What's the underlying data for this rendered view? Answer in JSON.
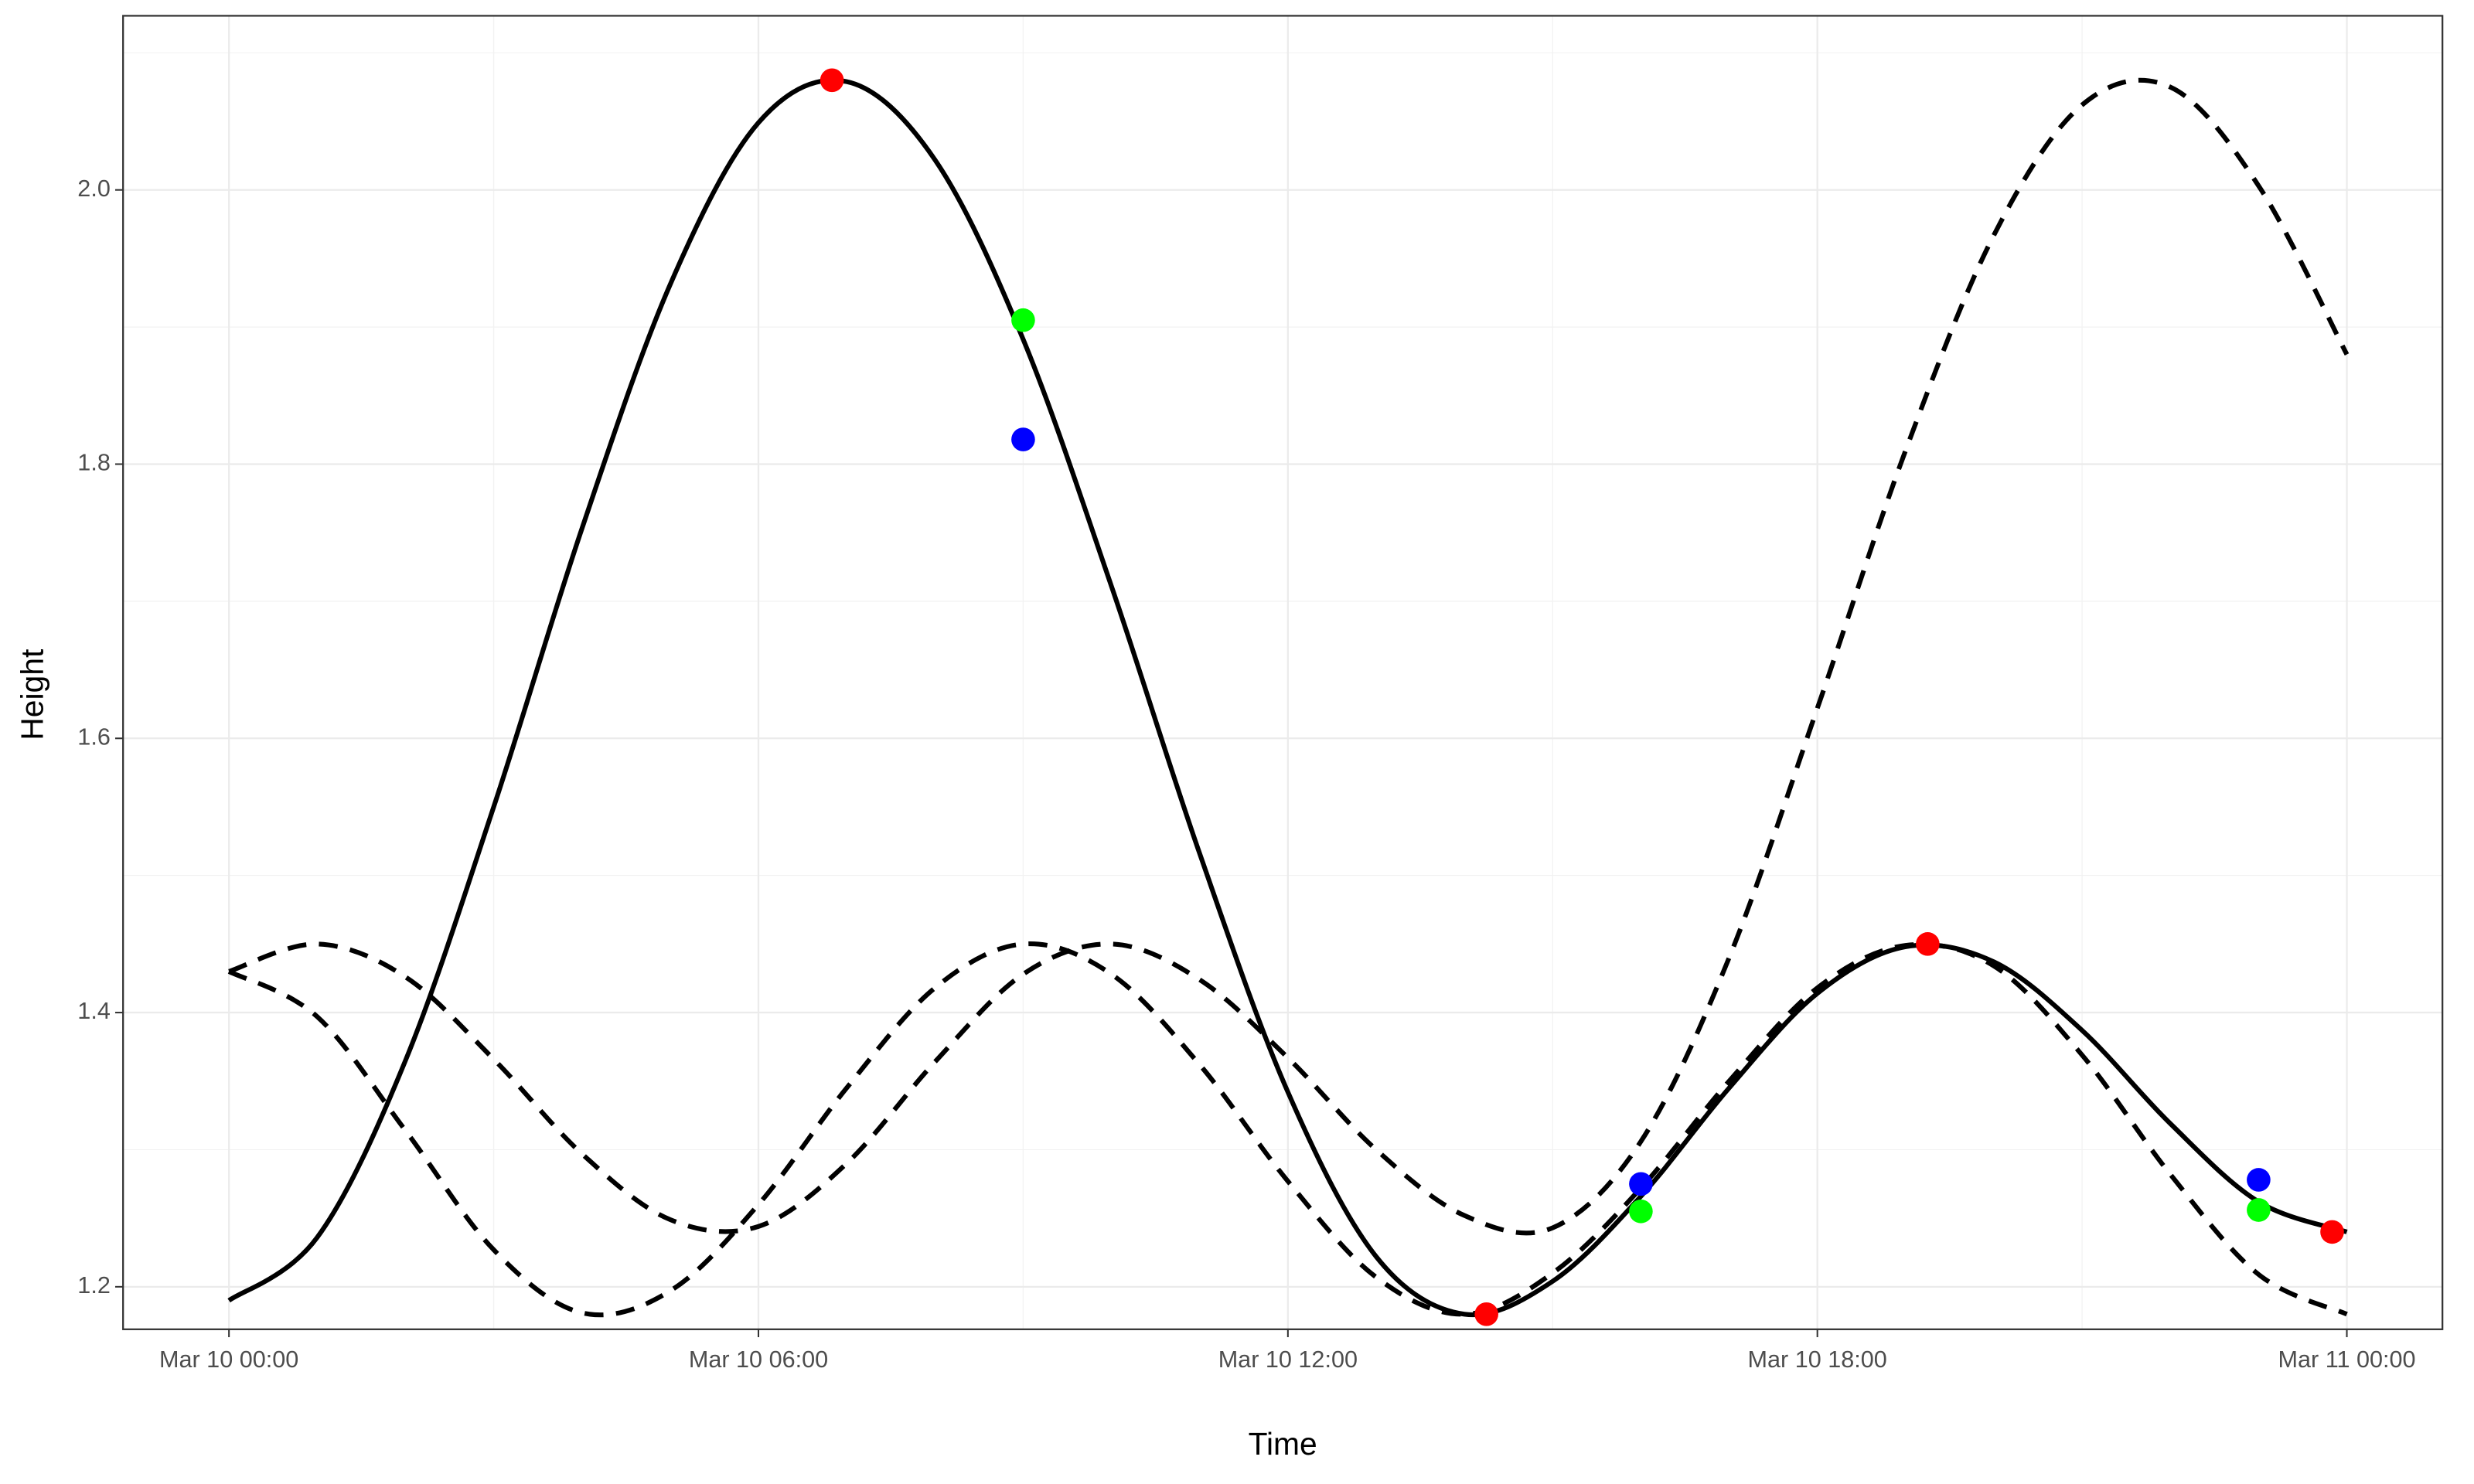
{
  "chart_data": {
    "type": "line",
    "x_label": "Time",
    "y_label": "Height",
    "xlim": [
      "Mar 9 22:48",
      "Mar 11 01:05"
    ],
    "xticks": [
      "Mar 10 00:00",
      "Mar 10 06:00",
      "Mar 10 12:00",
      "Mar 10 18:00",
      "Mar 11 00:00"
    ],
    "x_minor_ticks": [
      "Mar 10 03:00",
      "Mar 10 09:00",
      "Mar 10 15:00",
      "Mar 10 21:00"
    ],
    "ylim": [
      1.169,
      2.127
    ],
    "yticks": [
      1.2,
      1.4,
      1.6,
      1.8,
      {
        "value": 2,
        "label": "2.0"
      }
    ],
    "y_minor_ticks": [
      1.3,
      1.5,
      1.7,
      1.9,
      2.1
    ],
    "grid": true,
    "x": [
      "Mar 10 00:00",
      "Mar 10 01:00",
      "Mar 10 02:00",
      "Mar 10 03:00",
      "Mar 10 04:00",
      "Mar 10 05:00",
      "Mar 10 06:00",
      "Mar 10 07:00",
      "Mar 10 08:00",
      "Mar 10 09:00",
      "Mar 10 10:00",
      "Mar 10 11:00",
      "Mar 10 12:00",
      "Mar 10 13:00",
      "Mar 10 14:00",
      "Mar 10 15:00",
      "Mar 10 16:00",
      "Mar 10 17:00",
      "Mar 10 18:00",
      "Mar 10 19:00",
      "Mar 10 20:00",
      "Mar 10 21:00",
      "Mar 10 22:00",
      "Mar 10 23:00",
      "Mar 11 00:00"
    ],
    "series": [
      {
        "color": "#000000",
        "dashed": false,
        "values": [
          1.19,
          1.236,
          1.365,
          1.55,
          1.753,
          1.931,
          2.049,
          2.079,
          2.022,
          1.891,
          1.711,
          1.516,
          1.342,
          1.222,
          1.18,
          1.204,
          1.266,
          1.345,
          1.414,
          1.448,
          1.437,
          1.387,
          1.319,
          1.262,
          1.24
        ]
      },
      {
        "color": "#000000",
        "dashed": true,
        "values": [
          1.43,
          1.45,
          1.426,
          1.366,
          1.297,
          1.249,
          1.244,
          1.29,
          1.364,
          1.428,
          1.45,
          1.424,
          1.367,
          1.3,
          1.252,
          1.243,
          1.306,
          1.44,
          1.622,
          1.81,
          1.967,
          2.062,
          2.075,
          2.003,
          1.88
        ]
      },
      {
        "color": "#000000",
        "dashed": true,
        "values": [
          1.43,
          1.397,
          1.314,
          1.227,
          1.181,
          1.197,
          1.26,
          1.345,
          1.418,
          1.45,
          1.428,
          1.362,
          1.277,
          1.207,
          1.18,
          1.21,
          1.272,
          1.35,
          1.418,
          1.449,
          1.434,
          1.369,
          1.282,
          1.209,
          1.18
        ]
      }
    ],
    "points": [
      {
        "color": "#ff0000",
        "x": [
          "Mar 10 06:50",
          "Mar 10 14:15",
          "Mar 10 19:15",
          "Mar 10 23:50"
        ],
        "values": [
          2.08,
          1.18,
          1.45,
          1.24
        ]
      },
      {
        "color": "#00ff00",
        "x": [
          "Mar 10 09:00",
          "Mar 10 16:00",
          "Mar 10 23:00"
        ],
        "values": [
          1.905,
          1.255,
          1.256
        ]
      },
      {
        "color": "#0000ff",
        "x": [
          "Mar 10 09:00",
          "Mar 10 16:00",
          "Mar 10 23:00"
        ],
        "values": [
          1.818,
          1.275,
          1.278
        ]
      }
    ]
  }
}
